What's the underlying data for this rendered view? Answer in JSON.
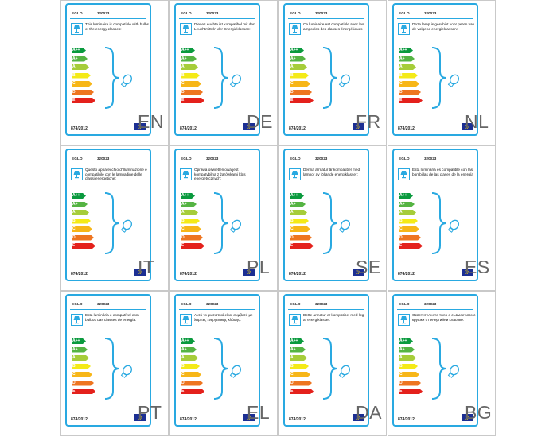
{
  "brand": "EGLO",
  "model": "320023",
  "regulation": "874/2012",
  "energy_classes": [
    "A++",
    "A+",
    "A",
    "B",
    "C",
    "D",
    "E"
  ],
  "colors": {
    "frame": "#29a9e1",
    "A++": "#0a9a3e",
    "A+": "#55b443",
    "A": "#a6cd3a",
    "B": "#f4ea17",
    "C": "#f7b617",
    "D": "#ee7520",
    "E": "#e4211c"
  },
  "labels": [
    {
      "lang": "EN",
      "text": "This luminaire is compatible with bulbs of the energy classes:"
    },
    {
      "lang": "DE",
      "text": "Diese Leuchte ist kompatibel mit den Leuchtmitteln der Energieklassen:"
    },
    {
      "lang": "FR",
      "text": "Ce luminaire est compatible avec les ampoules des classes énergétiques :"
    },
    {
      "lang": "NL",
      "text": "Deze lamp is geschikt voor peren van de volgend energieklassen:"
    },
    {
      "lang": "IT",
      "text": "Questo apparecchio d'illuminazione è compatibile con le lampadine delle classi energetiche:"
    },
    {
      "lang": "PL",
      "text": "Oprawa oświetleniowa jest kompatybilna z żarówkami klas energetycznych:"
    },
    {
      "lang": "SE",
      "text": "Denna armatur är kompatibel med lampor av följande energiklasser:"
    },
    {
      "lang": "ES",
      "text": "Esta luminaria es compatible con las bombillas de las clases de la energía"
    },
    {
      "lang": "PT",
      "text": "Esta luminária é compatível com bulbos das classes de energia:"
    },
    {
      "lang": "EL",
      "text": "Αυτό το φωτιστικό είναι συμβατό με λάμπες ενεργειακής κλάσης:"
    },
    {
      "lang": "DA",
      "text": "Dette armatur er kompatibel med løg af energiklasser:"
    },
    {
      "lang": "BG",
      "text": "Осветителното тяло е съвместимо с крушки от енергийни класове:"
    }
  ]
}
